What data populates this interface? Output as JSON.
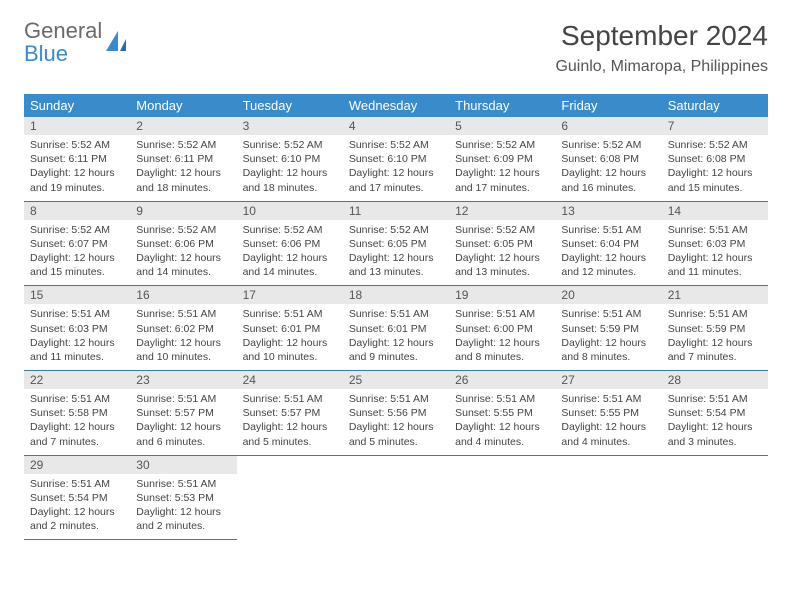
{
  "logo": {
    "text1": "General",
    "text2": "Blue"
  },
  "title": "September 2024",
  "location": "Guinlo, Mimaropa, Philippines",
  "colors": {
    "header_bg": "#3a8bc9",
    "header_text": "#ffffff",
    "daynum_bg": "#e8e8e8",
    "border": "#3a7aa8",
    "body_text": "#444444",
    "logo_gray": "#6a6a6a",
    "logo_blue": "#3a8bc9"
  },
  "dayHeaders": [
    "Sunday",
    "Monday",
    "Tuesday",
    "Wednesday",
    "Thursday",
    "Friday",
    "Saturday"
  ],
  "weeks": [
    [
      {
        "n": "1",
        "sunrise": "5:52 AM",
        "sunset": "6:11 PM",
        "dl": "12 hours and 19 minutes."
      },
      {
        "n": "2",
        "sunrise": "5:52 AM",
        "sunset": "6:11 PM",
        "dl": "12 hours and 18 minutes."
      },
      {
        "n": "3",
        "sunrise": "5:52 AM",
        "sunset": "6:10 PM",
        "dl": "12 hours and 18 minutes."
      },
      {
        "n": "4",
        "sunrise": "5:52 AM",
        "sunset": "6:10 PM",
        "dl": "12 hours and 17 minutes."
      },
      {
        "n": "5",
        "sunrise": "5:52 AM",
        "sunset": "6:09 PM",
        "dl": "12 hours and 17 minutes."
      },
      {
        "n": "6",
        "sunrise": "5:52 AM",
        "sunset": "6:08 PM",
        "dl": "12 hours and 16 minutes."
      },
      {
        "n": "7",
        "sunrise": "5:52 AM",
        "sunset": "6:08 PM",
        "dl": "12 hours and 15 minutes."
      }
    ],
    [
      {
        "n": "8",
        "sunrise": "5:52 AM",
        "sunset": "6:07 PM",
        "dl": "12 hours and 15 minutes."
      },
      {
        "n": "9",
        "sunrise": "5:52 AM",
        "sunset": "6:06 PM",
        "dl": "12 hours and 14 minutes."
      },
      {
        "n": "10",
        "sunrise": "5:52 AM",
        "sunset": "6:06 PM",
        "dl": "12 hours and 14 minutes."
      },
      {
        "n": "11",
        "sunrise": "5:52 AM",
        "sunset": "6:05 PM",
        "dl": "12 hours and 13 minutes."
      },
      {
        "n": "12",
        "sunrise": "5:52 AM",
        "sunset": "6:05 PM",
        "dl": "12 hours and 13 minutes."
      },
      {
        "n": "13",
        "sunrise": "5:51 AM",
        "sunset": "6:04 PM",
        "dl": "12 hours and 12 minutes."
      },
      {
        "n": "14",
        "sunrise": "5:51 AM",
        "sunset": "6:03 PM",
        "dl": "12 hours and 11 minutes."
      }
    ],
    [
      {
        "n": "15",
        "sunrise": "5:51 AM",
        "sunset": "6:03 PM",
        "dl": "12 hours and 11 minutes."
      },
      {
        "n": "16",
        "sunrise": "5:51 AM",
        "sunset": "6:02 PM",
        "dl": "12 hours and 10 minutes."
      },
      {
        "n": "17",
        "sunrise": "5:51 AM",
        "sunset": "6:01 PM",
        "dl": "12 hours and 10 minutes."
      },
      {
        "n": "18",
        "sunrise": "5:51 AM",
        "sunset": "6:01 PM",
        "dl": "12 hours and 9 minutes."
      },
      {
        "n": "19",
        "sunrise": "5:51 AM",
        "sunset": "6:00 PM",
        "dl": "12 hours and 8 minutes."
      },
      {
        "n": "20",
        "sunrise": "5:51 AM",
        "sunset": "5:59 PM",
        "dl": "12 hours and 8 minutes."
      },
      {
        "n": "21",
        "sunrise": "5:51 AM",
        "sunset": "5:59 PM",
        "dl": "12 hours and 7 minutes."
      }
    ],
    [
      {
        "n": "22",
        "sunrise": "5:51 AM",
        "sunset": "5:58 PM",
        "dl": "12 hours and 7 minutes."
      },
      {
        "n": "23",
        "sunrise": "5:51 AM",
        "sunset": "5:57 PM",
        "dl": "12 hours and 6 minutes."
      },
      {
        "n": "24",
        "sunrise": "5:51 AM",
        "sunset": "5:57 PM",
        "dl": "12 hours and 5 minutes."
      },
      {
        "n": "25",
        "sunrise": "5:51 AM",
        "sunset": "5:56 PM",
        "dl": "12 hours and 5 minutes."
      },
      {
        "n": "26",
        "sunrise": "5:51 AM",
        "sunset": "5:55 PM",
        "dl": "12 hours and 4 minutes."
      },
      {
        "n": "27",
        "sunrise": "5:51 AM",
        "sunset": "5:55 PM",
        "dl": "12 hours and 4 minutes."
      },
      {
        "n": "28",
        "sunrise": "5:51 AM",
        "sunset": "5:54 PM",
        "dl": "12 hours and 3 minutes."
      }
    ],
    [
      {
        "n": "29",
        "sunrise": "5:51 AM",
        "sunset": "5:54 PM",
        "dl": "12 hours and 2 minutes."
      },
      {
        "n": "30",
        "sunrise": "5:51 AM",
        "sunset": "5:53 PM",
        "dl": "12 hours and 2 minutes."
      },
      null,
      null,
      null,
      null,
      null
    ]
  ],
  "labels": {
    "sunrise": "Sunrise:",
    "sunset": "Sunset:",
    "daylight": "Daylight:"
  }
}
